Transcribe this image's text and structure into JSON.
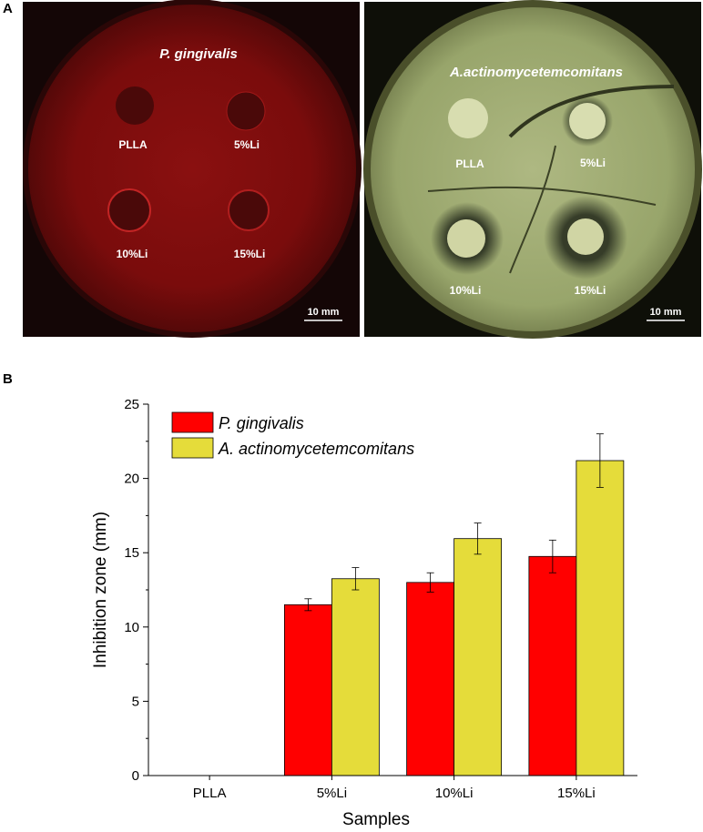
{
  "panel_a": {
    "label": "A",
    "plates": [
      {
        "organism": "P. gingivalis",
        "scale_bar": "10 mm",
        "wells": [
          "PLLA",
          "5%Li",
          "10%Li",
          "15%Li"
        ]
      },
      {
        "organism": "A.actinomycetemcomitans",
        "scale_bar": "10 mm",
        "wells": [
          "PLLA",
          "5%Li",
          "10%Li",
          "15%Li"
        ]
      }
    ]
  },
  "panel_b": {
    "label": "B"
  },
  "chart_data": {
    "type": "bar",
    "title": "",
    "xlabel": "Samples",
    "ylabel": "Inhibition zone (mm)",
    "categories": [
      "PLLA",
      "5%Li",
      "10%Li",
      "15%Li"
    ],
    "ylim": [
      0,
      25
    ],
    "yticks": [
      0,
      5,
      10,
      15,
      20,
      25
    ],
    "grid": false,
    "legend_position": "top-left",
    "series": [
      {
        "name": "P. gingivalis",
        "color": "#ff0000",
        "values": [
          0,
          11.5,
          13.0,
          14.75
        ],
        "errors": [
          0,
          0.4,
          0.65,
          1.1
        ]
      },
      {
        "name": "A. actinomycetemcomitans",
        "color": "#e5dc3a",
        "values": [
          0,
          13.25,
          15.95,
          21.2
        ],
        "errors": [
          0,
          0.75,
          1.05,
          1.8
        ]
      }
    ]
  }
}
